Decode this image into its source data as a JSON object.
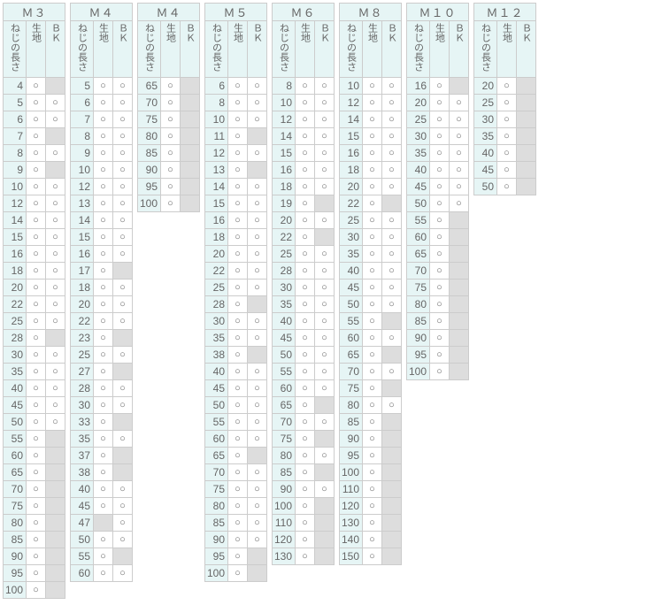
{
  "colors": {
    "header_bg": "#e6f5f5",
    "empty_bg": "#dddddd",
    "border": "#cccccc",
    "text": "#666666",
    "circle_text": "#666666"
  },
  "symbols": {
    "circle": "○"
  },
  "headers": {
    "length": "ねじの長さ",
    "col1": "生地",
    "col2": "ＢＫ"
  },
  "blocks": [
    {
      "title": "Ｍ３",
      "rows": [
        {
          "len": "4",
          "c1": true,
          "c2": false
        },
        {
          "len": "5",
          "c1": true,
          "c2": true
        },
        {
          "len": "6",
          "c1": true,
          "c2": true
        },
        {
          "len": "7",
          "c1": true,
          "c2": false
        },
        {
          "len": "8",
          "c1": true,
          "c2": true
        },
        {
          "len": "9",
          "c1": true,
          "c2": false
        },
        {
          "len": "10",
          "c1": true,
          "c2": true
        },
        {
          "len": "12",
          "c1": true,
          "c2": true
        },
        {
          "len": "14",
          "c1": true,
          "c2": true
        },
        {
          "len": "15",
          "c1": true,
          "c2": true
        },
        {
          "len": "16",
          "c1": true,
          "c2": true
        },
        {
          "len": "18",
          "c1": true,
          "c2": true
        },
        {
          "len": "20",
          "c1": true,
          "c2": true
        },
        {
          "len": "22",
          "c1": true,
          "c2": true
        },
        {
          "len": "25",
          "c1": true,
          "c2": true
        },
        {
          "len": "28",
          "c1": true,
          "c2": false
        },
        {
          "len": "30",
          "c1": true,
          "c2": true
        },
        {
          "len": "35",
          "c1": true,
          "c2": true
        },
        {
          "len": "40",
          "c1": true,
          "c2": true
        },
        {
          "len": "45",
          "c1": true,
          "c2": true
        },
        {
          "len": "50",
          "c1": true,
          "c2": true
        },
        {
          "len": "55",
          "c1": true,
          "c2": false
        },
        {
          "len": "60",
          "c1": true,
          "c2": false
        },
        {
          "len": "65",
          "c1": true,
          "c2": false
        },
        {
          "len": "70",
          "c1": true,
          "c2": false
        },
        {
          "len": "75",
          "c1": true,
          "c2": false
        },
        {
          "len": "80",
          "c1": true,
          "c2": false
        },
        {
          "len": "85",
          "c1": true,
          "c2": false
        },
        {
          "len": "90",
          "c1": true,
          "c2": false
        },
        {
          "len": "95",
          "c1": true,
          "c2": false
        },
        {
          "len": "100",
          "c1": true,
          "c2": false
        }
      ]
    },
    {
      "title": "Ｍ４",
      "rows": [
        {
          "len": "5",
          "c1": true,
          "c2": true
        },
        {
          "len": "6",
          "c1": true,
          "c2": true
        },
        {
          "len": "7",
          "c1": true,
          "c2": true
        },
        {
          "len": "8",
          "c1": true,
          "c2": true
        },
        {
          "len": "9",
          "c1": true,
          "c2": true
        },
        {
          "len": "10",
          "c1": true,
          "c2": true
        },
        {
          "len": "12",
          "c1": true,
          "c2": true
        },
        {
          "len": "13",
          "c1": true,
          "c2": true
        },
        {
          "len": "14",
          "c1": true,
          "c2": true
        },
        {
          "len": "15",
          "c1": true,
          "c2": true
        },
        {
          "len": "16",
          "c1": true,
          "c2": true
        },
        {
          "len": "17",
          "c1": true,
          "c2": false
        },
        {
          "len": "18",
          "c1": true,
          "c2": true
        },
        {
          "len": "20",
          "c1": true,
          "c2": true
        },
        {
          "len": "22",
          "c1": true,
          "c2": true
        },
        {
          "len": "23",
          "c1": true,
          "c2": false
        },
        {
          "len": "25",
          "c1": true,
          "c2": true
        },
        {
          "len": "27",
          "c1": true,
          "c2": false
        },
        {
          "len": "28",
          "c1": true,
          "c2": true
        },
        {
          "len": "30",
          "c1": true,
          "c2": true
        },
        {
          "len": "33",
          "c1": true,
          "c2": false
        },
        {
          "len": "35",
          "c1": true,
          "c2": true
        },
        {
          "len": "37",
          "c1": true,
          "c2": false
        },
        {
          "len": "38",
          "c1": true,
          "c2": false
        },
        {
          "len": "40",
          "c1": true,
          "c2": true
        },
        {
          "len": "45",
          "c1": true,
          "c2": true
        },
        {
          "len": "47",
          "c1": false,
          "c2": true
        },
        {
          "len": "50",
          "c1": true,
          "c2": true
        },
        {
          "len": "55",
          "c1": true,
          "c2": false
        },
        {
          "len": "60",
          "c1": true,
          "c2": true
        }
      ]
    },
    {
      "title": "Ｍ４",
      "rows": [
        {
          "len": "65",
          "c1": true,
          "c2": false
        },
        {
          "len": "70",
          "c1": true,
          "c2": false
        },
        {
          "len": "75",
          "c1": true,
          "c2": false
        },
        {
          "len": "80",
          "c1": true,
          "c2": false
        },
        {
          "len": "85",
          "c1": true,
          "c2": false
        },
        {
          "len": "90",
          "c1": true,
          "c2": false
        },
        {
          "len": "95",
          "c1": true,
          "c2": false
        },
        {
          "len": "100",
          "c1": true,
          "c2": false
        }
      ]
    },
    {
      "title": "Ｍ５",
      "rows": [
        {
          "len": "6",
          "c1": true,
          "c2": true
        },
        {
          "len": "8",
          "c1": true,
          "c2": true
        },
        {
          "len": "10",
          "c1": true,
          "c2": true
        },
        {
          "len": "11",
          "c1": true,
          "c2": false
        },
        {
          "len": "12",
          "c1": true,
          "c2": true
        },
        {
          "len": "13",
          "c1": true,
          "c2": false
        },
        {
          "len": "14",
          "c1": true,
          "c2": true
        },
        {
          "len": "15",
          "c1": true,
          "c2": true
        },
        {
          "len": "16",
          "c1": true,
          "c2": true
        },
        {
          "len": "18",
          "c1": true,
          "c2": true
        },
        {
          "len": "20",
          "c1": true,
          "c2": true
        },
        {
          "len": "22",
          "c1": true,
          "c2": true
        },
        {
          "len": "25",
          "c1": true,
          "c2": true
        },
        {
          "len": "28",
          "c1": true,
          "c2": false
        },
        {
          "len": "30",
          "c1": true,
          "c2": true
        },
        {
          "len": "35",
          "c1": true,
          "c2": true
        },
        {
          "len": "38",
          "c1": true,
          "c2": false
        },
        {
          "len": "40",
          "c1": true,
          "c2": true
        },
        {
          "len": "45",
          "c1": true,
          "c2": true
        },
        {
          "len": "50",
          "c1": true,
          "c2": true
        },
        {
          "len": "55",
          "c1": true,
          "c2": true
        },
        {
          "len": "60",
          "c1": true,
          "c2": true
        },
        {
          "len": "65",
          "c1": true,
          "c2": false
        },
        {
          "len": "70",
          "c1": true,
          "c2": true
        },
        {
          "len": "75",
          "c1": true,
          "c2": true
        },
        {
          "len": "80",
          "c1": true,
          "c2": true
        },
        {
          "len": "85",
          "c1": true,
          "c2": true
        },
        {
          "len": "90",
          "c1": true,
          "c2": true
        },
        {
          "len": "95",
          "c1": true,
          "c2": false
        },
        {
          "len": "100",
          "c1": true,
          "c2": false
        }
      ]
    },
    {
      "title": "Ｍ６",
      "rows": [
        {
          "len": "8",
          "c1": true,
          "c2": true
        },
        {
          "len": "10",
          "c1": true,
          "c2": true
        },
        {
          "len": "12",
          "c1": true,
          "c2": true
        },
        {
          "len": "14",
          "c1": true,
          "c2": true
        },
        {
          "len": "15",
          "c1": true,
          "c2": true
        },
        {
          "len": "16",
          "c1": true,
          "c2": true
        },
        {
          "len": "18",
          "c1": true,
          "c2": true
        },
        {
          "len": "19",
          "c1": true,
          "c2": false
        },
        {
          "len": "20",
          "c1": true,
          "c2": true
        },
        {
          "len": "22",
          "c1": true,
          "c2": false
        },
        {
          "len": "25",
          "c1": true,
          "c2": true
        },
        {
          "len": "28",
          "c1": true,
          "c2": true
        },
        {
          "len": "30",
          "c1": true,
          "c2": true
        },
        {
          "len": "35",
          "c1": true,
          "c2": true
        },
        {
          "len": "40",
          "c1": true,
          "c2": true
        },
        {
          "len": "45",
          "c1": true,
          "c2": true
        },
        {
          "len": "50",
          "c1": true,
          "c2": true
        },
        {
          "len": "55",
          "c1": true,
          "c2": true
        },
        {
          "len": "60",
          "c1": true,
          "c2": true
        },
        {
          "len": "65",
          "c1": true,
          "c2": false
        },
        {
          "len": "70",
          "c1": true,
          "c2": true
        },
        {
          "len": "75",
          "c1": true,
          "c2": false
        },
        {
          "len": "80",
          "c1": true,
          "c2": true
        },
        {
          "len": "85",
          "c1": true,
          "c2": false
        },
        {
          "len": "90",
          "c1": true,
          "c2": true
        },
        {
          "len": "100",
          "c1": true,
          "c2": false
        },
        {
          "len": "110",
          "c1": true,
          "c2": false
        },
        {
          "len": "120",
          "c1": true,
          "c2": false
        },
        {
          "len": "130",
          "c1": true,
          "c2": false
        }
      ]
    },
    {
      "title": "Ｍ８",
      "rows": [
        {
          "len": "10",
          "c1": true,
          "c2": true
        },
        {
          "len": "12",
          "c1": true,
          "c2": true
        },
        {
          "len": "14",
          "c1": true,
          "c2": true
        },
        {
          "len": "15",
          "c1": true,
          "c2": true
        },
        {
          "len": "16",
          "c1": true,
          "c2": true
        },
        {
          "len": "18",
          "c1": true,
          "c2": true
        },
        {
          "len": "20",
          "c1": true,
          "c2": true
        },
        {
          "len": "22",
          "c1": true,
          "c2": false
        },
        {
          "len": "25",
          "c1": true,
          "c2": true
        },
        {
          "len": "30",
          "c1": true,
          "c2": true
        },
        {
          "len": "35",
          "c1": true,
          "c2": true
        },
        {
          "len": "40",
          "c1": true,
          "c2": true
        },
        {
          "len": "45",
          "c1": true,
          "c2": true
        },
        {
          "len": "50",
          "c1": true,
          "c2": true
        },
        {
          "len": "55",
          "c1": true,
          "c2": false
        },
        {
          "len": "60",
          "c1": true,
          "c2": true
        },
        {
          "len": "65",
          "c1": true,
          "c2": false
        },
        {
          "len": "70",
          "c1": true,
          "c2": true
        },
        {
          "len": "75",
          "c1": true,
          "c2": false
        },
        {
          "len": "80",
          "c1": true,
          "c2": true
        },
        {
          "len": "85",
          "c1": true,
          "c2": false
        },
        {
          "len": "90",
          "c1": true,
          "c2": false
        },
        {
          "len": "95",
          "c1": true,
          "c2": false
        },
        {
          "len": "100",
          "c1": true,
          "c2": false
        },
        {
          "len": "110",
          "c1": true,
          "c2": false
        },
        {
          "len": "120",
          "c1": true,
          "c2": false
        },
        {
          "len": "130",
          "c1": true,
          "c2": false
        },
        {
          "len": "140",
          "c1": true,
          "c2": false
        },
        {
          "len": "150",
          "c1": true,
          "c2": false
        }
      ]
    },
    {
      "title": "Ｍ１０",
      "rows": [
        {
          "len": "16",
          "c1": true,
          "c2": false
        },
        {
          "len": "20",
          "c1": true,
          "c2": true
        },
        {
          "len": "25",
          "c1": true,
          "c2": true
        },
        {
          "len": "30",
          "c1": true,
          "c2": true
        },
        {
          "len": "35",
          "c1": true,
          "c2": true
        },
        {
          "len": "40",
          "c1": true,
          "c2": true
        },
        {
          "len": "45",
          "c1": true,
          "c2": true
        },
        {
          "len": "50",
          "c1": true,
          "c2": true
        },
        {
          "len": "55",
          "c1": true,
          "c2": false
        },
        {
          "len": "60",
          "c1": true,
          "c2": false
        },
        {
          "len": "65",
          "c1": true,
          "c2": false
        },
        {
          "len": "70",
          "c1": true,
          "c2": false
        },
        {
          "len": "75",
          "c1": true,
          "c2": false
        },
        {
          "len": "80",
          "c1": true,
          "c2": false
        },
        {
          "len": "85",
          "c1": true,
          "c2": false
        },
        {
          "len": "90",
          "c1": true,
          "c2": false
        },
        {
          "len": "95",
          "c1": true,
          "c2": false
        },
        {
          "len": "100",
          "c1": true,
          "c2": false
        }
      ]
    },
    {
      "title": "Ｍ１２",
      "rows": [
        {
          "len": "20",
          "c1": true,
          "c2": false
        },
        {
          "len": "25",
          "c1": true,
          "c2": false
        },
        {
          "len": "30",
          "c1": true,
          "c2": false
        },
        {
          "len": "35",
          "c1": true,
          "c2": false
        },
        {
          "len": "40",
          "c1": true,
          "c2": false
        },
        {
          "len": "45",
          "c1": true,
          "c2": false
        },
        {
          "len": "50",
          "c1": true,
          "c2": false
        }
      ]
    }
  ]
}
